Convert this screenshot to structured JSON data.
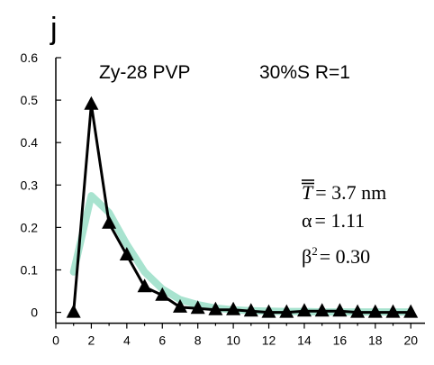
{
  "chart_data": {
    "type": "line",
    "panel_letter": "j",
    "title": "Zy-28 PVP",
    "subtitle": "30%S R=1",
    "xlabel": "",
    "ylabel": "",
    "xlim": [
      0,
      20.8
    ],
    "ylim": [
      -0.02,
      0.6
    ],
    "x_ticks": [
      0,
      2,
      4,
      6,
      8,
      10,
      12,
      14,
      16,
      18,
      20
    ],
    "y_ticks": [
      0,
      0.1,
      0.2,
      0.3,
      0.4,
      0.5,
      0.6
    ],
    "y_tick_labels": [
      "0",
      "0.1",
      "0.2",
      "0.3",
      "0.4",
      "0.5",
      "0.6"
    ],
    "grid": false,
    "legend": "none",
    "annotations": {
      "t_symbol": "T",
      "t_value": "= 3.7 nm",
      "alpha_symbol": "α",
      "alpha_value": "= 1.11",
      "beta_symbol": "β",
      "beta_exp": "2",
      "beta_value": "= 0.30"
    },
    "series": [
      {
        "color": "#a8e3cf",
        "style": "thick-line",
        "x": [
          1,
          2,
          3,
          4,
          5,
          6,
          7,
          8,
          9,
          10,
          11,
          12,
          13,
          14,
          15,
          16,
          17,
          18,
          19,
          20
        ],
        "y": [
          0.095,
          0.275,
          0.235,
          0.16,
          0.095,
          0.055,
          0.03,
          0.018,
          0.01,
          0.006,
          0.004,
          0.003,
          0.002,
          0.002,
          0.001,
          0.001,
          0.001,
          0.001,
          0.001,
          0.001
        ]
      },
      {
        "color": "#000000",
        "style": "line-triangle",
        "x": [
          1,
          2,
          3,
          4,
          5,
          6,
          7,
          8,
          9,
          10,
          11,
          12,
          13,
          14,
          15,
          16,
          17,
          18,
          19,
          20
        ],
        "y": [
          0.0,
          0.49,
          0.21,
          0.135,
          0.06,
          0.04,
          0.012,
          0.009,
          0.006,
          0.006,
          0.003,
          0.0,
          0.0,
          0.003,
          0.003,
          0.003,
          0.0,
          0.0,
          0.0,
          0.0
        ]
      }
    ]
  }
}
